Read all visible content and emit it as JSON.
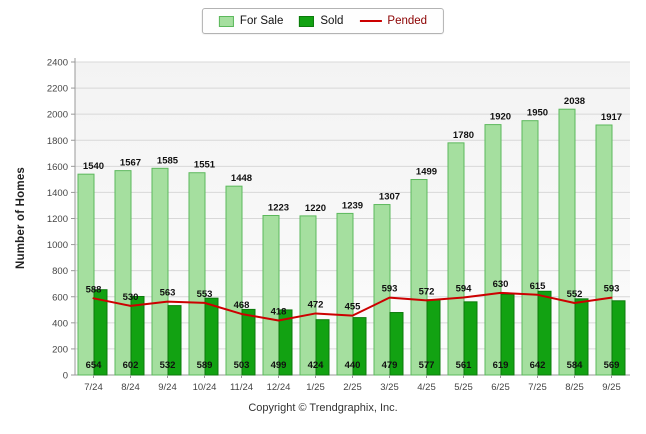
{
  "footer": "Copyright © Trendgraphix, Inc.",
  "chart_data": {
    "type": "bar",
    "title": "",
    "xlabel": "",
    "ylabel": "Number of Homes",
    "ylim": [
      0,
      2400
    ],
    "ytick_step": 200,
    "grid": true,
    "legend_position": "top",
    "categories": [
      "7/24",
      "8/24",
      "9/24",
      "10/24",
      "11/24",
      "12/24",
      "1/25",
      "2/25",
      "3/25",
      "4/25",
      "5/25",
      "6/25",
      "7/25",
      "8/25",
      "9/25"
    ],
    "series": [
      {
        "name": "For Sale",
        "type": "bar",
        "color": "#A5DF9F",
        "border": "#5CB85C",
        "values": [
          1540,
          1567,
          1585,
          1551,
          1448,
          1223,
          1220,
          1239,
          1307,
          1499,
          1780,
          1920,
          1950,
          2038,
          1917
        ]
      },
      {
        "name": "Sold",
        "type": "bar",
        "color": "#12A212",
        "border": "#0B7A0B",
        "values": [
          654,
          602,
          532,
          589,
          503,
          499,
          424,
          440,
          479,
          577,
          561,
          619,
          642,
          584,
          569
        ]
      },
      {
        "name": "Pended",
        "type": "line",
        "color": "#CC0000",
        "values": [
          588,
          530,
          563,
          553,
          468,
          418,
          472,
          455,
          593,
          572,
          594,
          630,
          615,
          552,
          593
        ]
      }
    ],
    "colors": {
      "gridline": "#d8d8d8",
      "axis": "#999999",
      "tick_text": "#444444",
      "value_text": "#111111",
      "plot_bg_top": "#f3f3f3",
      "plot_bg_bottom": "#fcfcfc"
    }
  }
}
